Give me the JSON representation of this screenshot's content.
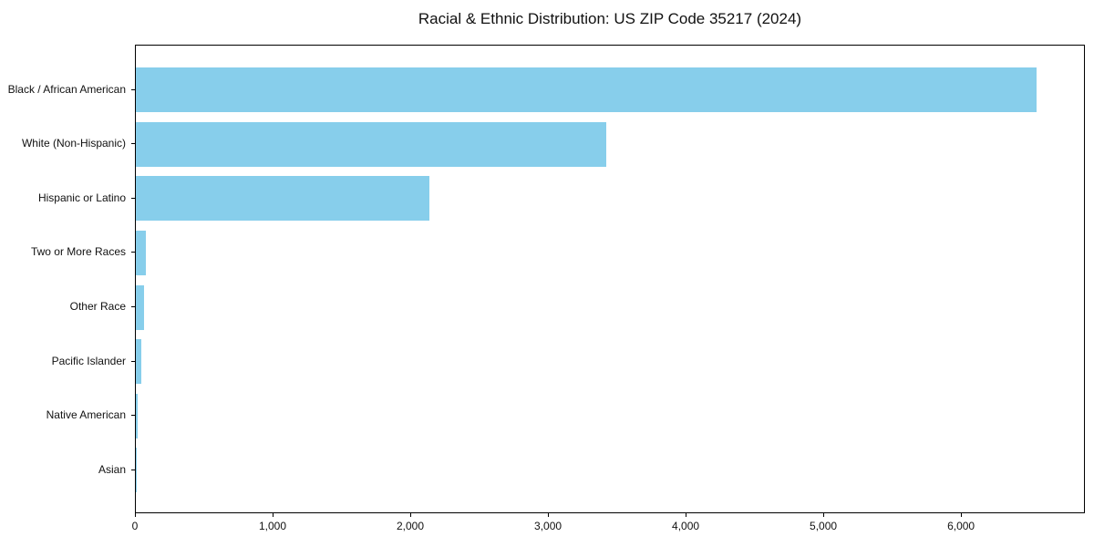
{
  "chart_data": {
    "type": "bar",
    "orientation": "horizontal",
    "title": "Racial & Ethnic Distribution: US ZIP Code 35217 (2024)",
    "categories": [
      "Black / African American",
      "White (Non-Hispanic)",
      "Hispanic or Latino",
      "Two or More Races",
      "Other Race",
      "Pacific Islander",
      "Native American",
      "Asian"
    ],
    "values": [
      6540,
      3420,
      2130,
      75,
      60,
      38,
      10,
      5
    ],
    "xlabel": "",
    "ylabel": "",
    "xlim": [
      0,
      6900
    ],
    "xticks": {
      "values": [
        0,
        1000,
        2000,
        3000,
        4000,
        5000,
        6000
      ],
      "labels": [
        "0",
        "1,000",
        "2,000",
        "3,000",
        "4,000",
        "5,000",
        "6,000"
      ]
    },
    "grid": false,
    "legend": null,
    "bar_color": "#87CEEB",
    "background_color": "#ffffff",
    "spine_color": "#000000",
    "text_color": "#111111"
  }
}
